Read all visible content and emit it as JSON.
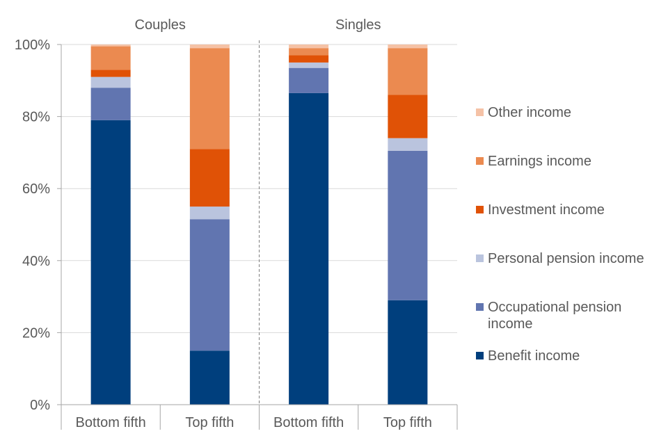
{
  "chart_data": {
    "type": "stacked-bar",
    "ylim": [
      0,
      100
    ],
    "yticks": [
      "0%",
      "20%",
      "40%",
      "60%",
      "80%",
      "100%"
    ],
    "groups": [
      {
        "title": "Couples",
        "categories": [
          "Bottom fifth",
          "Top fifth"
        ]
      },
      {
        "title": "Singles",
        "categories": [
          "Bottom fifth",
          "Top fifth"
        ]
      }
    ],
    "categories": [
      "Couples – Bottom fifth",
      "Couples – Top fifth",
      "Singles – Bottom fifth",
      "Singles – Top fifth"
    ],
    "series": [
      {
        "name": "Benefit income",
        "color": "#003F7D",
        "values": [
          79,
          15,
          86.5,
          29
        ]
      },
      {
        "name": "Occupational pension\nincome",
        "color": "#6175B0",
        "values": [
          9,
          36.5,
          7,
          41.5
        ]
      },
      {
        "name": "Personal pension income",
        "color": "#BAC4DE",
        "values": [
          3,
          3.5,
          1.5,
          3.5
        ]
      },
      {
        "name": "Investment income",
        "color": "#E05206",
        "values": [
          2,
          16,
          2,
          12
        ]
      },
      {
        "name": "Earnings income",
        "color": "#EB8A50",
        "values": [
          6.5,
          28,
          2,
          13
        ]
      },
      {
        "name": "Other income",
        "color": "#F5C2A6",
        "values": [
          0.5,
          1,
          1,
          1
        ]
      }
    ]
  }
}
